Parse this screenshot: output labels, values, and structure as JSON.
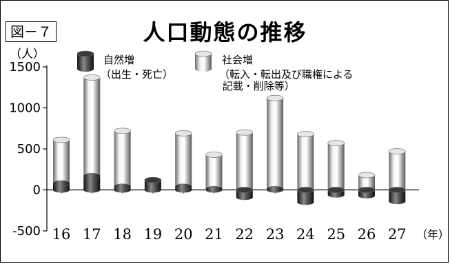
{
  "figure_label": "図－７",
  "chart_data": {
    "type": "bar",
    "title": "人口動態の推移",
    "ylabel": "（人）",
    "xlabel": "（年）",
    "ylim": [
      -500,
      1500
    ],
    "yticks": [
      1500,
      1000,
      500,
      0,
      -500
    ],
    "categories": [
      "16",
      "17",
      "18",
      "19",
      "20",
      "21",
      "22",
      "23",
      "24",
      "25",
      "26",
      "27"
    ],
    "series": [
      {
        "name": "自然増",
        "sublabel": "（出生・死亡）",
        "color": "#2a2a2a",
        "values": [
          80,
          170,
          40,
          120,
          40,
          10,
          -90,
          10,
          -150,
          -60,
          -70,
          -140
        ]
      },
      {
        "name": "社会増",
        "sublabel": "（転入・転出及び職権による\n 記載・削除等）",
        "color": "#c8c8c8",
        "values": [
          530,
          1200,
          680,
          0,
          650,
          420,
          700,
          1110,
          680,
          570,
          180,
          470
        ]
      }
    ],
    "grid": false
  }
}
